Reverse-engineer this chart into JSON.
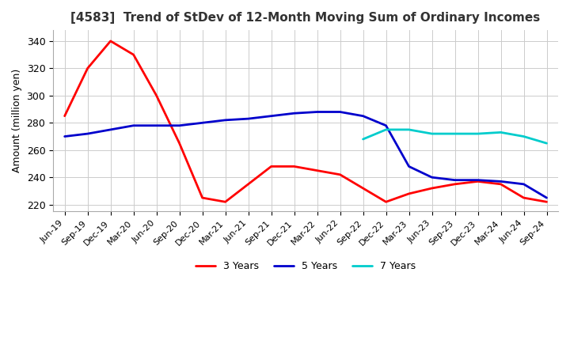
{
  "title": "[4583]  Trend of StDev of 12-Month Moving Sum of Ordinary Incomes",
  "ylabel": "Amount (million yen)",
  "ylim": [
    215,
    348
  ],
  "yticks": [
    220,
    240,
    260,
    280,
    300,
    320,
    340
  ],
  "colors": {
    "3 Years": "#ff0000",
    "5 Years": "#0000cc",
    "7 Years": "#00cccc",
    "10 Years": "#006600"
  },
  "x_labels": [
    "Jun-19",
    "Sep-19",
    "Dec-19",
    "Mar-20",
    "Jun-20",
    "Sep-20",
    "Dec-20",
    "Mar-21",
    "Jun-21",
    "Sep-21",
    "Dec-21",
    "Mar-22",
    "Jun-22",
    "Sep-22",
    "Dec-22",
    "Mar-23",
    "Jun-23",
    "Sep-23",
    "Dec-23",
    "Mar-24",
    "Jun-24",
    "Sep-24"
  ],
  "series": {
    "3 Years": [
      285,
      320,
      340,
      330,
      300,
      265,
      225,
      222,
      235,
      248,
      248,
      245,
      242,
      232,
      222,
      228,
      232,
      235,
      237,
      235,
      225,
      222
    ],
    "5 Years": [
      270,
      272,
      275,
      278,
      278,
      278,
      280,
      282,
      283,
      285,
      287,
      288,
      288,
      285,
      278,
      248,
      240,
      238,
      238,
      237,
      235,
      225
    ],
    "7 Years": [
      null,
      null,
      null,
      null,
      null,
      null,
      null,
      null,
      null,
      null,
      null,
      null,
      null,
      268,
      275,
      275,
      272,
      272,
      272,
      273,
      270,
      265
    ],
    "10 Years": [
      null,
      null,
      null,
      null,
      null,
      null,
      null,
      null,
      null,
      null,
      null,
      null,
      null,
      null,
      null,
      null,
      null,
      null,
      null,
      null,
      null,
      null
    ]
  },
  "background_color": "#ffffff",
  "grid_color": "#cccccc",
  "linewidth": 2.0
}
